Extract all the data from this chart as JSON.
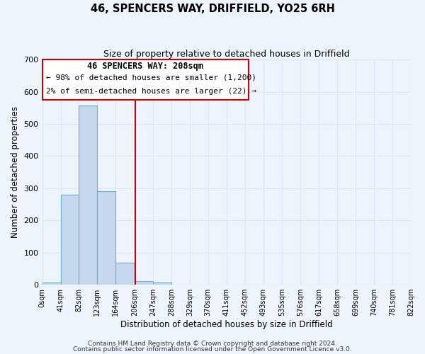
{
  "title": "46, SPENCERS WAY, DRIFFIELD, YO25 6RH",
  "subtitle": "Size of property relative to detached houses in Driffield",
  "xlabel": "Distribution of detached houses by size in Driffield",
  "ylabel": "Number of detached properties",
  "bin_edges": [
    0,
    41,
    82,
    123,
    164,
    206,
    247,
    288,
    329,
    370,
    411,
    452,
    493,
    535,
    576,
    617,
    658,
    699,
    740,
    781,
    822
  ],
  "bar_heights": [
    7,
    281,
    558,
    292,
    68,
    12,
    8,
    0,
    0,
    0,
    0,
    0,
    0,
    0,
    0,
    0,
    0,
    0,
    0,
    0
  ],
  "bar_color": "#c5d8ed",
  "bar_edge_color": "#6baed6",
  "vline_x": 208,
  "vline_color": "#cc0000",
  "ylim": [
    0,
    700
  ],
  "yticks": [
    0,
    100,
    200,
    300,
    400,
    500,
    600,
    700
  ],
  "xtick_labels": [
    "0sqm",
    "41sqm",
    "82sqm",
    "123sqm",
    "164sqm",
    "206sqm",
    "247sqm",
    "288sqm",
    "329sqm",
    "370sqm",
    "411sqm",
    "452sqm",
    "493sqm",
    "535sqm",
    "576sqm",
    "617sqm",
    "658sqm",
    "699sqm",
    "740sqm",
    "781sqm",
    "822sqm"
  ],
  "annotation_title": "46 SPENCERS WAY: 208sqm",
  "annotation_line1": "← 98% of detached houses are smaller (1,200)",
  "annotation_line2": "2% of semi-detached houses are larger (22) →",
  "bg_color": "#eef4fb",
  "grid_color": "#d8e6f5",
  "footer1": "Contains HM Land Registry data © Crown copyright and database right 2024.",
  "footer2": "Contains public sector information licensed under the Open Government Licence v3.0."
}
